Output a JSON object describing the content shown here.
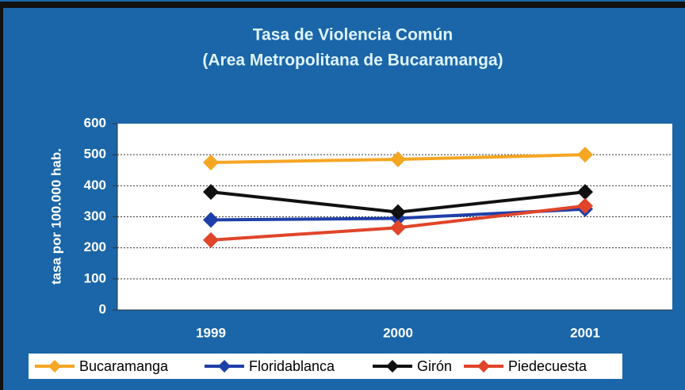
{
  "chart_data": {
    "type": "line",
    "title": "Tasa de Violencia Común",
    "subtitle": "(Area Metropolitana de Bucaramanga)",
    "y_label": "tasa por 100.000 hab.",
    "categories": [
      "1999",
      "2000",
      "2001"
    ],
    "series": [
      {
        "name": "Bucaramanga",
        "color": "#f5a623",
        "values": [
          475,
          485,
          500
        ]
      },
      {
        "name": "Floridablanca",
        "color": "#1f3fa8",
        "values": [
          290,
          295,
          325
        ]
      },
      {
        "name": "Girón",
        "color": "#111111",
        "values": [
          380,
          315,
          380
        ]
      },
      {
        "name": "Piedecuesta",
        "color": "#e0452a",
        "values": [
          225,
          265,
          335
        ]
      }
    ],
    "ylim": [
      0,
      600
    ],
    "yticks": [
      0,
      100,
      200,
      300,
      400,
      500,
      600
    ],
    "grid": true,
    "legend": "bottom"
  }
}
